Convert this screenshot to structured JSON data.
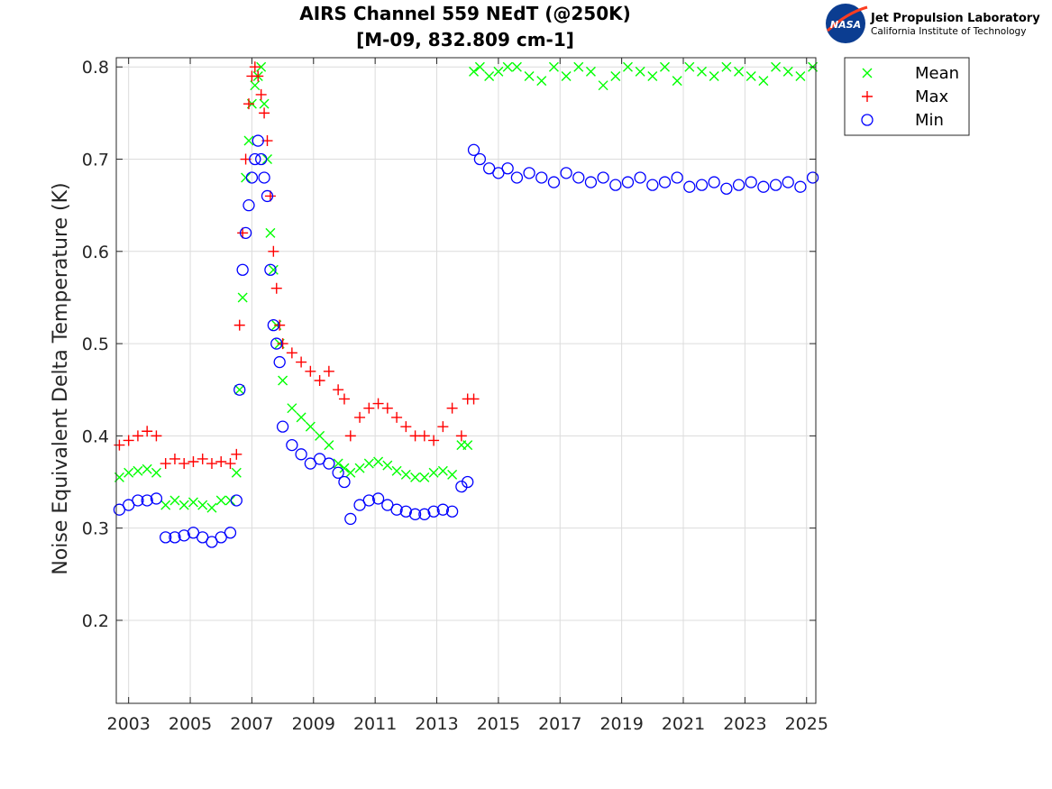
{
  "logo": {
    "badge": "NASA",
    "line1": "Jet Propulsion Laboratory",
    "line2": "California Institute of Technology"
  },
  "colors": {
    "mean": "#00ff00",
    "max": "#ff0000",
    "min": "#0000ff",
    "grid": "#dcdcdc"
  },
  "chart_data": {
    "type": "scatter",
    "title": [
      "AIRS Channel 559 NEdT (@250K)",
      "[M-09, 832.809 cm-1]"
    ],
    "xlabel": "",
    "ylabel": "Noise Equivalent Delta Temperature (K)",
    "xlim": [
      2002.6,
      2025.3
    ],
    "ylim": [
      0.11,
      0.81
    ],
    "xticks": [
      2003,
      2005,
      2007,
      2009,
      2011,
      2013,
      2015,
      2017,
      2019,
      2021,
      2023,
      2025
    ],
    "yticks": [
      0.2,
      0.3,
      0.4,
      0.5,
      0.6,
      0.7,
      0.8
    ],
    "grid": true,
    "legend_position": "outside-top-right",
    "series": [
      {
        "name": "Mean",
        "marker": "x",
        "color": "#00ff00",
        "x": [
          2002.7,
          2003.0,
          2003.3,
          2003.6,
          2003.9,
          2004.2,
          2004.5,
          2004.8,
          2005.1,
          2005.4,
          2005.7,
          2006.0,
          2006.3,
          2006.5,
          2006.6,
          2006.7,
          2006.8,
          2006.9,
          2007.0,
          2007.1,
          2007.2,
          2007.3,
          2007.4,
          2007.5,
          2007.6,
          2007.7,
          2007.8,
          2007.9,
          2008.0,
          2008.3,
          2008.6,
          2008.9,
          2009.2,
          2009.5,
          2009.8,
          2010.0,
          2010.2,
          2010.5,
          2010.8,
          2011.1,
          2011.4,
          2011.7,
          2012.0,
          2012.3,
          2012.6,
          2012.9,
          2013.2,
          2013.5,
          2013.8,
          2014.0,
          2014.2,
          2014.4,
          2014.7,
          2015.0,
          2015.3,
          2015.6,
          2016.0,
          2016.4,
          2016.8,
          2017.2,
          2017.6,
          2018.0,
          2018.4,
          2018.8,
          2019.2,
          2019.6,
          2020.0,
          2020.4,
          2020.8,
          2021.2,
          2021.6,
          2022.0,
          2022.4,
          2022.8,
          2023.2,
          2023.6,
          2024.0,
          2024.4,
          2024.8,
          2025.2
        ],
        "y": [
          0.355,
          0.36,
          0.362,
          0.364,
          0.36,
          0.325,
          0.33,
          0.325,
          0.328,
          0.325,
          0.322,
          0.33,
          0.33,
          0.36,
          0.45,
          0.55,
          0.68,
          0.72,
          0.76,
          0.78,
          0.79,
          0.8,
          0.76,
          0.7,
          0.62,
          0.58,
          0.52,
          0.5,
          0.46,
          0.43,
          0.42,
          0.41,
          0.4,
          0.39,
          0.37,
          0.365,
          0.36,
          0.365,
          0.37,
          0.372,
          0.368,
          0.362,
          0.358,
          0.355,
          0.355,
          0.36,
          0.362,
          0.358,
          0.39,
          0.39,
          0.795,
          0.8,
          0.79,
          0.795,
          0.8,
          0.8,
          0.79,
          0.785,
          0.8,
          0.79,
          0.8,
          0.795,
          0.78,
          0.79,
          0.8,
          0.795,
          0.79,
          0.8,
          0.785,
          0.8,
          0.795,
          0.79,
          0.8,
          0.795,
          0.79,
          0.785,
          0.8,
          0.795,
          0.79,
          0.8
        ]
      },
      {
        "name": "Max",
        "marker": "+",
        "color": "#ff0000",
        "x": [
          2002.7,
          2003.0,
          2003.3,
          2003.6,
          2003.9,
          2004.2,
          2004.5,
          2004.8,
          2005.1,
          2005.4,
          2005.7,
          2006.0,
          2006.3,
          2006.5,
          2006.6,
          2006.7,
          2006.8,
          2006.9,
          2007.0,
          2007.1,
          2007.2,
          2007.3,
          2007.4,
          2007.5,
          2007.6,
          2007.7,
          2007.8,
          2007.9,
          2008.0,
          2008.3,
          2008.6,
          2008.9,
          2009.2,
          2009.5,
          2009.8,
          2010.0,
          2010.2,
          2010.5,
          2010.8,
          2011.1,
          2011.4,
          2011.7,
          2012.0,
          2012.3,
          2012.6,
          2012.9,
          2013.2,
          2013.5,
          2013.8,
          2014.0,
          2014.2
        ],
        "y": [
          0.39,
          0.395,
          0.4,
          0.405,
          0.4,
          0.37,
          0.375,
          0.37,
          0.372,
          0.375,
          0.37,
          0.372,
          0.37,
          0.38,
          0.52,
          0.62,
          0.7,
          0.76,
          0.79,
          0.8,
          0.79,
          0.77,
          0.75,
          0.72,
          0.66,
          0.6,
          0.56,
          0.52,
          0.5,
          0.49,
          0.48,
          0.47,
          0.46,
          0.47,
          0.45,
          0.44,
          0.4,
          0.42,
          0.43,
          0.435,
          0.43,
          0.42,
          0.41,
          0.4,
          0.4,
          0.395,
          0.41,
          0.43,
          0.4,
          0.44,
          0.44
        ]
      },
      {
        "name": "Min",
        "marker": "o",
        "color": "#0000ff",
        "x": [
          2002.7,
          2003.0,
          2003.3,
          2003.6,
          2003.9,
          2004.2,
          2004.5,
          2004.8,
          2005.1,
          2005.4,
          2005.7,
          2006.0,
          2006.3,
          2006.5,
          2006.6,
          2006.7,
          2006.8,
          2006.9,
          2007.0,
          2007.1,
          2007.2,
          2007.3,
          2007.4,
          2007.5,
          2007.6,
          2007.7,
          2007.8,
          2007.9,
          2008.0,
          2008.3,
          2008.6,
          2008.9,
          2009.2,
          2009.5,
          2009.8,
          2010.0,
          2010.2,
          2010.5,
          2010.8,
          2011.1,
          2011.4,
          2011.7,
          2012.0,
          2012.3,
          2012.6,
          2012.9,
          2013.2,
          2013.5,
          2013.8,
          2014.0,
          2014.2,
          2014.4,
          2014.7,
          2015.0,
          2015.3,
          2015.6,
          2016.0,
          2016.4,
          2016.8,
          2017.2,
          2017.6,
          2018.0,
          2018.4,
          2018.8,
          2019.2,
          2019.6,
          2020.0,
          2020.4,
          2020.8,
          2021.2,
          2021.6,
          2022.0,
          2022.4,
          2022.8,
          2023.2,
          2023.6,
          2024.0,
          2024.4,
          2024.8,
          2025.2
        ],
        "y": [
          0.32,
          0.325,
          0.33,
          0.33,
          0.332,
          0.29,
          0.29,
          0.292,
          0.295,
          0.29,
          0.285,
          0.29,
          0.295,
          0.33,
          0.45,
          0.58,
          0.62,
          0.65,
          0.68,
          0.7,
          0.72,
          0.7,
          0.68,
          0.66,
          0.58,
          0.52,
          0.5,
          0.48,
          0.41,
          0.39,
          0.38,
          0.37,
          0.375,
          0.37,
          0.36,
          0.35,
          0.31,
          0.325,
          0.33,
          0.332,
          0.325,
          0.32,
          0.318,
          0.315,
          0.315,
          0.318,
          0.32,
          0.318,
          0.345,
          0.35,
          0.71,
          0.7,
          0.69,
          0.685,
          0.69,
          0.68,
          0.685,
          0.68,
          0.675,
          0.685,
          0.68,
          0.675,
          0.68,
          0.672,
          0.675,
          0.68,
          0.672,
          0.675,
          0.68,
          0.67,
          0.672,
          0.675,
          0.668,
          0.672,
          0.675,
          0.67,
          0.672,
          0.675,
          0.67,
          0.68
        ]
      }
    ]
  }
}
